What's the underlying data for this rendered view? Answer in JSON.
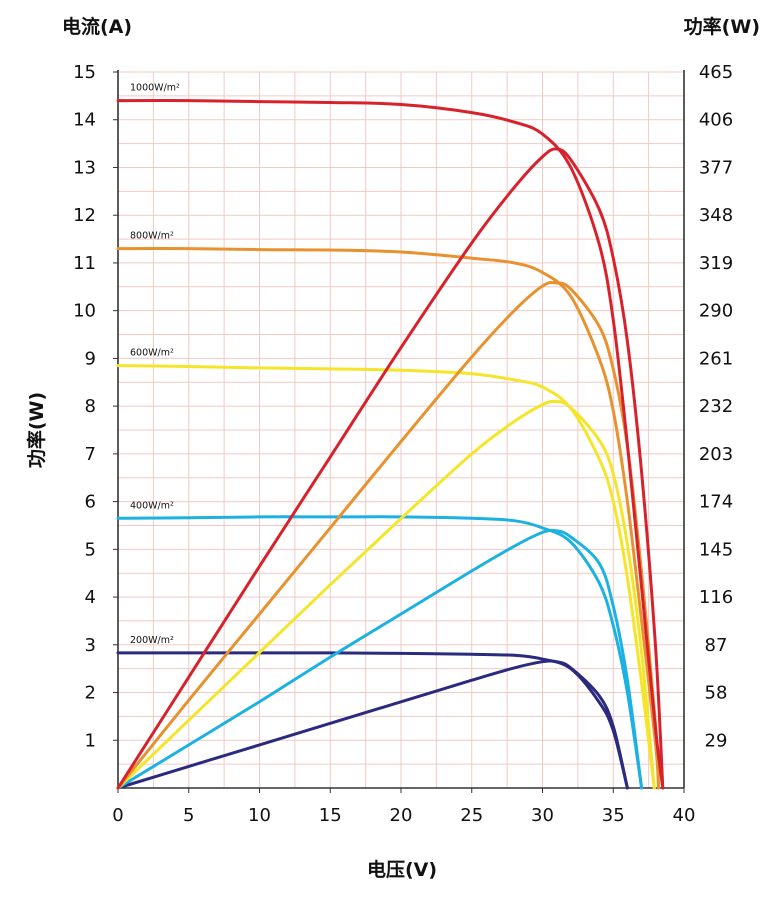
{
  "chart_data": {
    "type": "line",
    "x_axis": {
      "label": "电压(V)",
      "range": [
        0,
        40
      ],
      "ticks": [
        "0",
        "5",
        "10",
        "15",
        "20",
        "25",
        "30",
        "35",
        "40"
      ]
    },
    "y_axis_left": {
      "label": "电流(A)",
      "range": [
        0,
        15
      ],
      "ticks": [
        "1",
        "2",
        "3",
        "4",
        "5",
        "6",
        "7",
        "8",
        "9",
        "10",
        "11",
        "12",
        "13",
        "14",
        "15"
      ]
    },
    "y_axis_left_rotated_label": "功率(W)",
    "y_axis_right": {
      "label": "功率(W)",
      "range": [
        0,
        465
      ],
      "ticks": [
        "29",
        "58",
        "87",
        "116",
        "145",
        "174",
        "203",
        "232",
        "261",
        "290",
        "319",
        "348",
        "377",
        "406",
        "465"
      ]
    },
    "grid": true,
    "grid_color": "#f2c9c4",
    "series": [
      {
        "name": "1000W/m²",
        "color": "#d8222b",
        "iv_curve": [
          [
            0,
            14.4
          ],
          [
            5,
            14.4
          ],
          [
            10,
            14.38
          ],
          [
            15,
            14.36
          ],
          [
            20,
            14.32
          ],
          [
            25,
            14.15
          ],
          [
            28,
            13.95
          ],
          [
            30,
            13.7
          ],
          [
            32,
            13.0
          ],
          [
            34,
            11.4
          ],
          [
            35,
            9.8
          ],
          [
            36,
            7.2
          ],
          [
            37,
            4.2
          ],
          [
            38,
            1.2
          ],
          [
            38.5,
            0
          ]
        ],
        "pv_curve": [
          [
            0,
            0
          ],
          [
            5,
            72
          ],
          [
            10,
            144
          ],
          [
            15,
            215
          ],
          [
            20,
            286
          ],
          [
            25,
            354
          ],
          [
            28,
            390
          ],
          [
            30,
            410
          ],
          [
            31,
            415
          ],
          [
            32,
            408
          ],
          [
            34,
            376
          ],
          [
            35,
            344
          ],
          [
            36,
            290
          ],
          [
            37,
            205
          ],
          [
            38,
            90
          ],
          [
            38.5,
            0
          ]
        ]
      },
      {
        "name": "800W/m²",
        "color": "#e8922f",
        "iv_curve": [
          [
            0,
            11.3
          ],
          [
            5,
            11.3
          ],
          [
            10,
            11.28
          ],
          [
            15,
            11.27
          ],
          [
            20,
            11.23
          ],
          [
            25,
            11.1
          ],
          [
            28,
            11.0
          ],
          [
            30,
            10.8
          ],
          [
            32,
            10.3
          ],
          [
            34,
            9.0
          ],
          [
            35,
            7.9
          ],
          [
            36,
            6.0
          ],
          [
            37,
            3.5
          ],
          [
            38,
            0.9
          ],
          [
            38.2,
            0
          ]
        ],
        "pv_curve": [
          [
            0,
            0
          ],
          [
            5,
            57
          ],
          [
            10,
            113
          ],
          [
            15,
            169
          ],
          [
            20,
            225
          ],
          [
            25,
            280
          ],
          [
            28,
            310
          ],
          [
            30,
            326
          ],
          [
            31,
            328
          ],
          [
            32,
            324
          ],
          [
            34,
            300
          ],
          [
            35,
            272
          ],
          [
            36,
            222
          ],
          [
            37,
            140
          ],
          [
            38,
            40
          ],
          [
            38.2,
            0
          ]
        ]
      },
      {
        "name": "600W/m²",
        "color": "#f5e52a",
        "iv_curve": [
          [
            0,
            8.85
          ],
          [
            5,
            8.83
          ],
          [
            10,
            8.8
          ],
          [
            15,
            8.78
          ],
          [
            20,
            8.75
          ],
          [
            25,
            8.68
          ],
          [
            28,
            8.55
          ],
          [
            30,
            8.4
          ],
          [
            32,
            7.95
          ],
          [
            34,
            6.9
          ],
          [
            35,
            6.0
          ],
          [
            36,
            4.4
          ],
          [
            37,
            2.2
          ],
          [
            37.9,
            0
          ]
        ],
        "pv_curve": [
          [
            0,
            0
          ],
          [
            5,
            44
          ],
          [
            10,
            88
          ],
          [
            15,
            132
          ],
          [
            20,
            175
          ],
          [
            25,
            217
          ],
          [
            28,
            238
          ],
          [
            30,
            249
          ],
          [
            31,
            251
          ],
          [
            32,
            247
          ],
          [
            34,
            226
          ],
          [
            35,
            204
          ],
          [
            36,
            158
          ],
          [
            37,
            88
          ],
          [
            37.9,
            0
          ]
        ]
      },
      {
        "name": "400W/m²",
        "color": "#1cb1e3",
        "iv_curve": [
          [
            0,
            5.65
          ],
          [
            5,
            5.66
          ],
          [
            10,
            5.68
          ],
          [
            15,
            5.68
          ],
          [
            20,
            5.68
          ],
          [
            25,
            5.65
          ],
          [
            28,
            5.6
          ],
          [
            30,
            5.45
          ],
          [
            32,
            5.15
          ],
          [
            34,
            4.3
          ],
          [
            35,
            3.4
          ],
          [
            36,
            2.0
          ],
          [
            37,
            0
          ]
        ],
        "pv_curve": [
          [
            0,
            0
          ],
          [
            5,
            28
          ],
          [
            10,
            56
          ],
          [
            15,
            85
          ],
          [
            20,
            113
          ],
          [
            25,
            141
          ],
          [
            28,
            157
          ],
          [
            30,
            166
          ],
          [
            31,
            167
          ],
          [
            32,
            163
          ],
          [
            34,
            146
          ],
          [
            35,
            118
          ],
          [
            36,
            70
          ],
          [
            37,
            0
          ]
        ]
      },
      {
        "name": "200W/m²",
        "color": "#2a2a7f",
        "iv_curve": [
          [
            0,
            2.83
          ],
          [
            5,
            2.83
          ],
          [
            10,
            2.83
          ],
          [
            15,
            2.83
          ],
          [
            20,
            2.82
          ],
          [
            25,
            2.8
          ],
          [
            28,
            2.78
          ],
          [
            30,
            2.7
          ],
          [
            32,
            2.5
          ],
          [
            34,
            1.8
          ],
          [
            35,
            1.2
          ],
          [
            36,
            0
          ]
        ],
        "pv_curve": [
          [
            0,
            0
          ],
          [
            5,
            14
          ],
          [
            10,
            28
          ],
          [
            15,
            42
          ],
          [
            20,
            56
          ],
          [
            25,
            70
          ],
          [
            28,
            78
          ],
          [
            30,
            82
          ],
          [
            31,
            82
          ],
          [
            32,
            78
          ],
          [
            34,
            60
          ],
          [
            35,
            40
          ],
          [
            36,
            0
          ]
        ]
      }
    ]
  }
}
